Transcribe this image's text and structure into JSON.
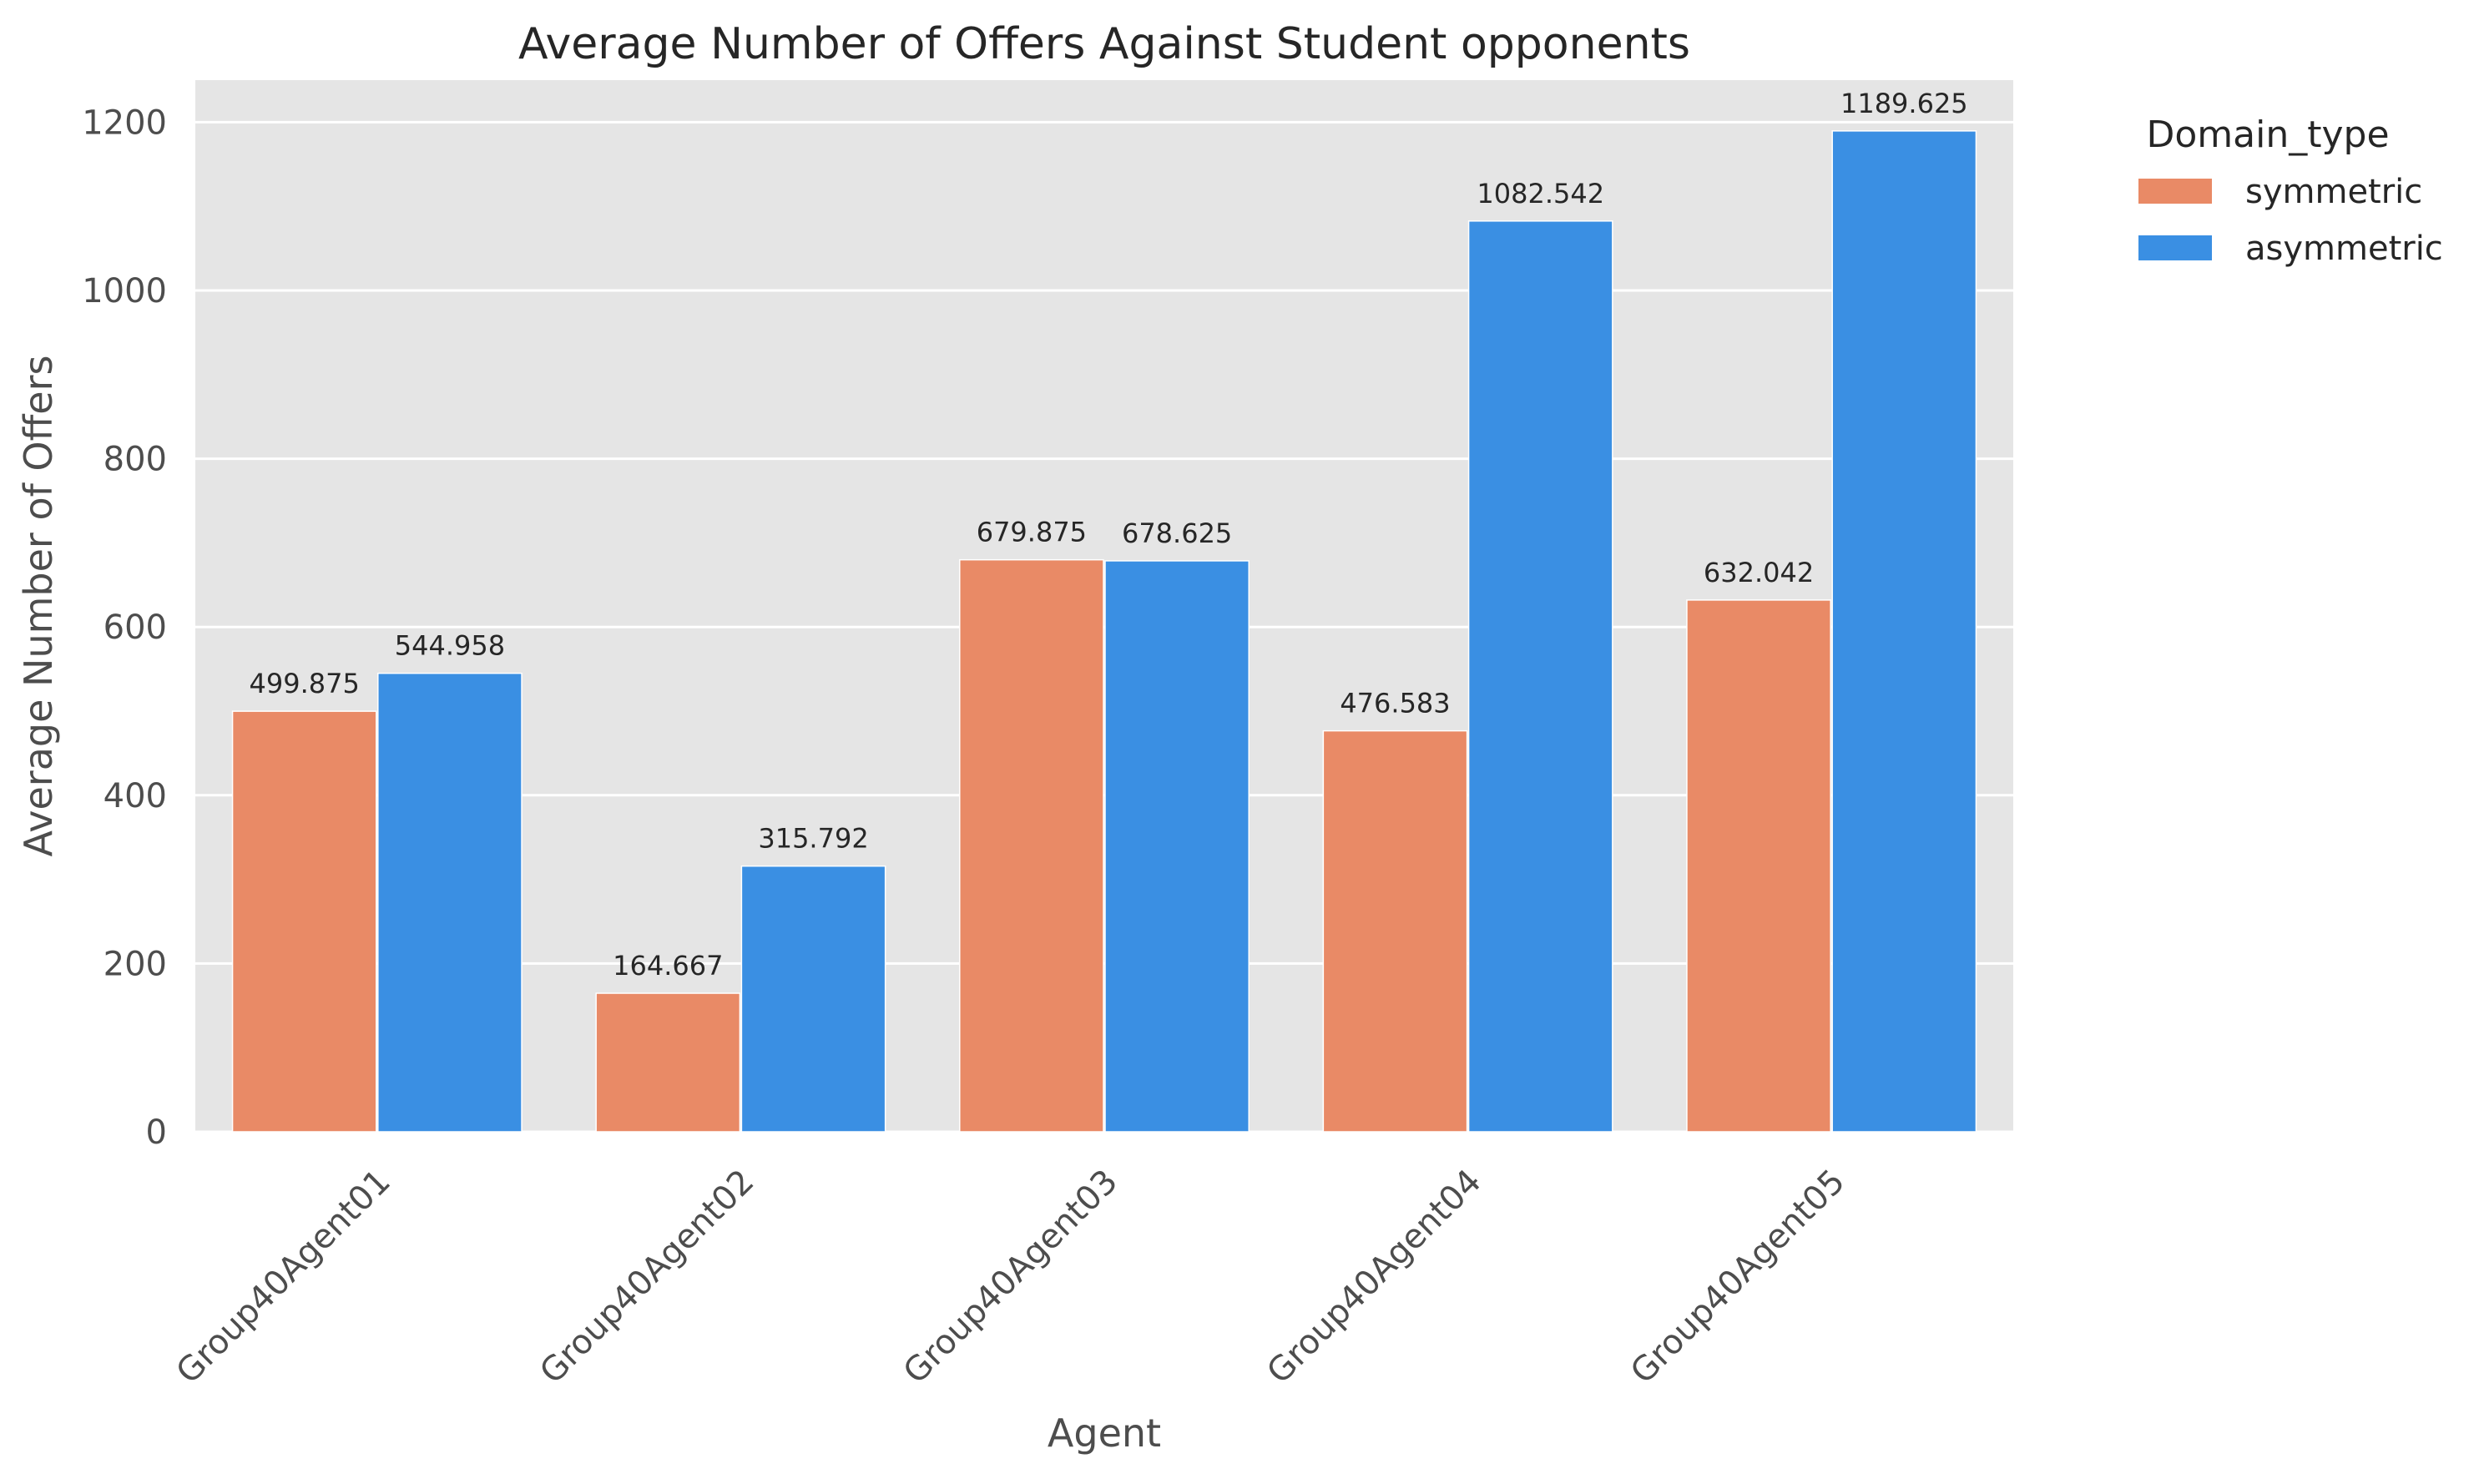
{
  "chart_data": {
    "type": "bar",
    "title": "Average Number of Offers Against Student opponents",
    "xlabel": "Agent",
    "ylabel": "Average Number of Offers",
    "categories": [
      "Group40Agent01",
      "Group40Agent02",
      "Group40Agent03",
      "Group40Agent04",
      "Group40Agent05"
    ],
    "series": [
      {
        "name": "symmetric",
        "color": "#e98a66",
        "values": [
          499.875,
          164.667,
          679.875,
          476.583,
          632.042
        ],
        "labels": [
          "499.875",
          "164.667",
          "679.875",
          "476.583",
          "632.042"
        ]
      },
      {
        "name": "asymmetric",
        "color": "#3a8fe3",
        "values": [
          544.958,
          315.792,
          678.625,
          1082.542,
          1189.625
        ],
        "labels": [
          "544.958",
          "315.792",
          "678.625",
          "1082.542",
          "1189.625"
        ]
      }
    ],
    "ylim": [
      0,
      1250
    ],
    "yticks": [
      0,
      200,
      400,
      600,
      800,
      1000,
      1200
    ],
    "grid": true,
    "legend": {
      "title": "Domain_type",
      "placement": "outside-top-right"
    },
    "colors": {
      "plot_background": "#e5e5e5",
      "grid": "#ffffff"
    }
  }
}
